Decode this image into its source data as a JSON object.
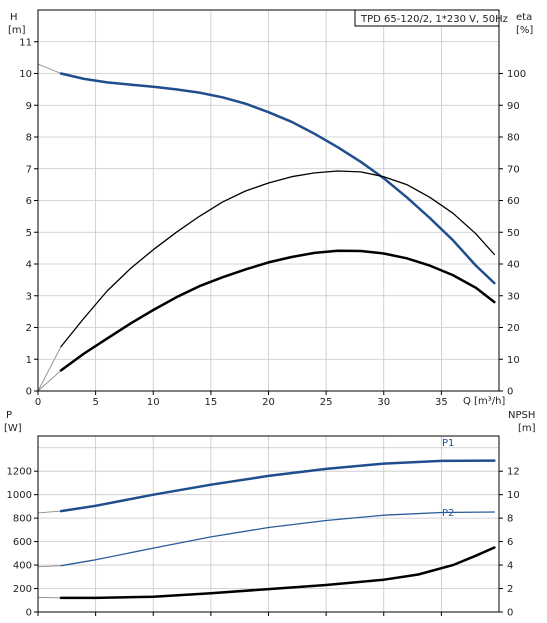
{
  "chart_data": [
    {
      "type": "line",
      "title": "TPD 65-120/2, 1*230 V, 50Hz",
      "xlabel": "Q [m³/h]",
      "ylabel": "H\n[m]",
      "ylabel_lines": [
        "H",
        "[m]"
      ],
      "ylabel_right_lines": [
        "eta",
        "[%]"
      ],
      "xlim": [
        0,
        40
      ],
      "ylim": [
        0,
        12
      ],
      "ylim_right": [
        0,
        120
      ],
      "x_ticks": [
        0,
        5,
        10,
        15,
        20,
        25,
        30,
        35
      ],
      "y_ticks": [
        0,
        1,
        2,
        3,
        4,
        5,
        6,
        7,
        8,
        9,
        10,
        11
      ],
      "y_right_ticks": [
        0,
        10,
        20,
        30,
        40,
        50,
        60,
        70,
        80,
        90,
        100
      ],
      "grid": true,
      "series": [
        {
          "name": "",
          "axis": "left",
          "color": "#1f4e8c",
          "x": [
            2,
            4,
            6,
            8,
            10,
            12,
            14,
            16,
            18,
            20,
            22,
            24,
            26,
            28,
            30,
            32,
            34,
            36,
            38,
            39.6
          ],
          "y": [
            10.0,
            9.83,
            9.72,
            9.65,
            9.58,
            9.5,
            9.4,
            9.25,
            9.05,
            8.78,
            8.48,
            8.1,
            7.68,
            7.22,
            6.7,
            6.1,
            5.45,
            4.75,
            3.95,
            3.4
          ]
        },
        {
          "name": "",
          "axis": "right",
          "color": "#000000",
          "x": [
            2,
            4,
            6,
            8,
            10,
            12,
            14,
            16,
            18,
            20,
            22,
            24,
            26,
            28,
            30,
            32,
            34,
            36,
            38,
            39.6
          ],
          "y": [
            14,
            23,
            31.5,
            38.5,
            44.5,
            50,
            55,
            59.5,
            63,
            65.5,
            67.5,
            68.7,
            69.3,
            69,
            67.5,
            65,
            61,
            56,
            49.5,
            43
          ]
        },
        {
          "name": "",
          "axis": "right",
          "color": "#000000",
          "x": [
            2,
            4,
            6,
            8,
            10,
            12,
            14,
            16,
            18,
            20,
            22,
            24,
            26,
            28,
            30,
            32,
            34,
            36,
            38,
            39.6
          ],
          "y": [
            6.5,
            11.8,
            16.5,
            21.2,
            25.5,
            29.5,
            33,
            35.8,
            38.3,
            40.5,
            42.2,
            43.5,
            44.2,
            44.1,
            43.3,
            41.8,
            39.5,
            36.5,
            32.5,
            28
          ]
        }
      ]
    },
    {
      "type": "line",
      "title": "",
      "xlabel": "",
      "ylabel_lines": [
        "P",
        "[W]"
      ],
      "ylabel_right_lines": [
        "NPSH",
        "[m]"
      ],
      "xlim": [
        0,
        40
      ],
      "ylim": [
        0,
        1500
      ],
      "ylim_right": [
        0,
        15
      ],
      "y_ticks": [
        0,
        200,
        400,
        600,
        800,
        1000,
        1200
      ],
      "y_right_ticks": [
        0,
        2,
        4,
        6,
        8,
        10,
        12
      ],
      "grid": true,
      "series": [
        {
          "name": "P1",
          "axis": "left",
          "color": "#1f4e8c",
          "x": [
            2,
            5,
            10,
            15,
            20,
            25,
            30,
            35,
            39.6
          ],
          "y": [
            860,
            905,
            1000,
            1085,
            1160,
            1220,
            1265,
            1288,
            1290
          ]
        },
        {
          "name": "P2",
          "axis": "left",
          "color": "#2a5c9a",
          "x": [
            2,
            5,
            10,
            15,
            20,
            25,
            30,
            35,
            39.6
          ],
          "y": [
            395,
            445,
            545,
            640,
            720,
            780,
            825,
            848,
            852
          ]
        },
        {
          "name": "",
          "axis": "right",
          "color": "#000000",
          "x": [
            2,
            5,
            10,
            15,
            20,
            25,
            30,
            33,
            36,
            38,
            39.6
          ],
          "y": [
            1.2,
            1.2,
            1.3,
            1.6,
            1.95,
            2.3,
            2.75,
            3.2,
            4.0,
            4.8,
            5.5
          ]
        }
      ],
      "pre_segments": [
        {
          "axis": "left",
          "x": [
            0,
            2
          ],
          "y": [
            845,
            860
          ],
          "color": "#8a8a8a"
        },
        {
          "axis": "left",
          "x": [
            0,
            2
          ],
          "y": [
            385,
            395
          ],
          "color": "#8a8a8a"
        },
        {
          "axis": "right",
          "x": [
            0,
            2
          ],
          "y": [
            1.25,
            1.2
          ],
          "color": "#8a8a8a"
        }
      ]
    }
  ],
  "top_pre_segments": [
    {
      "axis": "left",
      "x": [
        0,
        2
      ],
      "y": [
        10.3,
        10.0
      ],
      "color": "#8a8a8a"
    },
    {
      "axis": "right",
      "x": [
        0,
        2
      ],
      "y": [
        0,
        14
      ],
      "color": "#8a8a8a"
    },
    {
      "axis": "right",
      "x": [
        0,
        2
      ],
      "y": [
        0,
        6.5
      ],
      "color": "#8a8a8a"
    }
  ]
}
